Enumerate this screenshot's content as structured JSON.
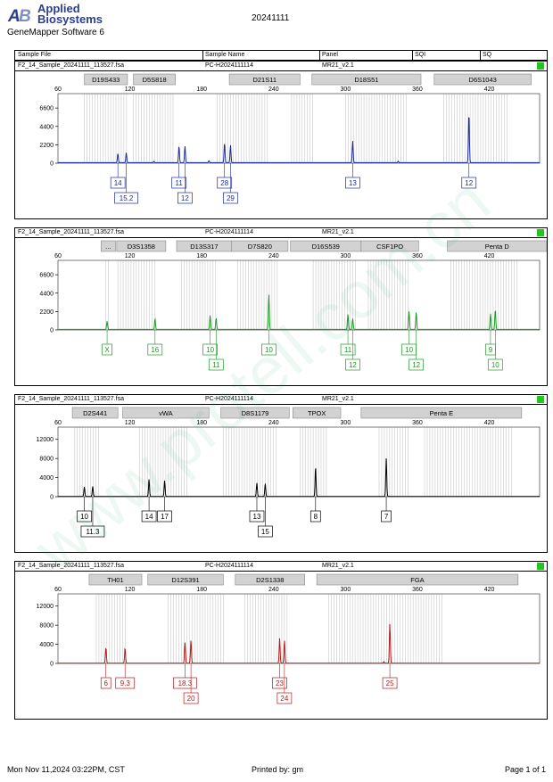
{
  "header": {
    "logo_text_line1": "Applied",
    "logo_text_line2": "Biosystems",
    "software": "GeneMapper Software 6",
    "date": "20241111",
    "columns": [
      "Sample File",
      "Sample Name",
      "Panel",
      "SQI",
      "SQ"
    ]
  },
  "footer": {
    "printed_at": "Mon Nov 11,2024 03:22PM, CST",
    "printed_by": "Printed by: gm",
    "page": "Page 1 of 1"
  },
  "watermark": "www.protell.com.cn",
  "colors": {
    "blue": "#1b2a9e",
    "green": "#1d9a27",
    "black": "#000000",
    "red": "#b11b1b",
    "bin": "#c8c8c8",
    "marker": "#d2d2d2",
    "sq_ok": "#1ec81e"
  },
  "chart_data": [
    {
      "type": "line",
      "dye": "blue",
      "sample_file": "F2_14_Sample_20241111_113527.fsa",
      "sample_name": "PC-H2024111114",
      "panel": "MR21_v2.1",
      "xlim": [
        60,
        462
      ],
      "x_ticks": [
        60,
        120,
        180,
        240,
        300,
        360,
        420
      ],
      "ylim": [
        0,
        8000
      ],
      "y_ticks": [
        0,
        2200,
        4400,
        6600
      ],
      "markers": [
        {
          "name": "D19S433",
          "range": [
            82,
            118
          ]
        },
        {
          "name": "D5S818",
          "range": [
            123,
            158
          ]
        },
        {
          "name": "D21S11",
          "range": [
            203,
            262
          ]
        },
        {
          "name": "D18S51",
          "range": [
            272,
            363
          ]
        },
        {
          "name": "D6S1043",
          "range": [
            374,
            455
          ]
        }
      ],
      "bin_ranges": [
        [
          82,
          118
        ],
        [
          123,
          158
        ],
        [
          193,
          235
        ],
        [
          255,
          274
        ],
        [
          300,
          352
        ],
        [
          382,
          436
        ]
      ],
      "peaks": [
        {
          "x": 110,
          "h": 1100
        },
        {
          "x": 117,
          "h": 1200
        },
        {
          "x": 161,
          "h": 2000
        },
        {
          "x": 166,
          "h": 2000
        },
        {
          "x": 199,
          "h": 2400
        },
        {
          "x": 204,
          "h": 2100
        },
        {
          "x": 306,
          "h": 2600
        },
        {
          "x": 403,
          "h": 6000
        }
      ],
      "noise": [
        {
          "x": 140,
          "h": 150
        },
        {
          "x": 186,
          "h": 250
        },
        {
          "x": 344,
          "h": 180
        }
      ],
      "alleles": [
        {
          "label": "14",
          "x": 110,
          "row": 1
        },
        {
          "label": "15.2",
          "x": 117,
          "row": 2
        },
        {
          "label": "11",
          "x": 161,
          "row": 1
        },
        {
          "label": "12",
          "x": 166,
          "row": 2
        },
        {
          "label": "28",
          "x": 199,
          "row": 1
        },
        {
          "label": "29",
          "x": 204,
          "row": 2
        },
        {
          "label": "13",
          "x": 306,
          "row": 1
        },
        {
          "label": "12",
          "x": 403,
          "row": 1
        }
      ]
    },
    {
      "type": "line",
      "dye": "green",
      "sample_file": "F2_14_Sample_20241111_113527.fsa",
      "sample_name": "PC-H2024111114",
      "panel": "MR21_v2.1",
      "xlim": [
        60,
        462
      ],
      "x_ticks": [
        60,
        120,
        180,
        240,
        300,
        360,
        420
      ],
      "ylim": [
        0,
        8000
      ],
      "y_ticks": [
        0,
        2200,
        4400,
        6600
      ],
      "markers": [
        {
          "name": "...",
          "range": [
            96,
            108
          ]
        },
        {
          "name": "D3S1358",
          "range": [
            109,
            150
          ]
        },
        {
          "name": "D13S317",
          "range": [
            159,
            205
          ]
        },
        {
          "name": "D7S820",
          "range": [
            205,
            252
          ]
        },
        {
          "name": "D16S539",
          "range": [
            254,
            313
          ]
        },
        {
          "name": "CSF1PO",
          "range": [
            313,
            361
          ]
        },
        {
          "name": "Penta D",
          "range": [
            385,
            468
          ]
        }
      ],
      "bin_ranges": [
        [
          100,
          103
        ],
        [
          110,
          142
        ],
        [
          163,
          192
        ],
        [
          210,
          244
        ],
        [
          273,
          310
        ],
        [
          319,
          352
        ],
        [
          388,
          443
        ]
      ],
      "peaks": [
        {
          "x": 101,
          "h": 1000
        },
        {
          "x": 141,
          "h": 1300
        },
        {
          "x": 187,
          "h": 1700
        },
        {
          "x": 192,
          "h": 1400
        },
        {
          "x": 236,
          "h": 4200
        },
        {
          "x": 302,
          "h": 1800
        },
        {
          "x": 306,
          "h": 1300
        },
        {
          "x": 353,
          "h": 2200
        },
        {
          "x": 359,
          "h": 2100
        },
        {
          "x": 421,
          "h": 1900
        },
        {
          "x": 425,
          "h": 2400
        }
      ],
      "noise": [],
      "alleles": [
        {
          "label": "X",
          "x": 101,
          "row": 1
        },
        {
          "label": "16",
          "x": 141,
          "row": 1
        },
        {
          "label": "10",
          "x": 187,
          "row": 1
        },
        {
          "label": "11",
          "x": 192,
          "row": 2
        },
        {
          "label": "10",
          "x": 236,
          "row": 1
        },
        {
          "label": "11",
          "x": 302,
          "row": 1
        },
        {
          "label": "12",
          "x": 306,
          "row": 2
        },
        {
          "label": "10",
          "x": 353,
          "row": 1
        },
        {
          "label": "12",
          "x": 359,
          "row": 2
        },
        {
          "label": "9",
          "x": 421,
          "row": 1
        },
        {
          "label": "10",
          "x": 425,
          "row": 2
        }
      ]
    },
    {
      "type": "line",
      "dye": "black",
      "sample_file": "F2_14_Sample_20241111_113527.fsa",
      "sample_name": "PC-H2024111114",
      "panel": "MR21_v2.1",
      "xlim": [
        60,
        462
      ],
      "x_ticks": [
        60,
        120,
        180,
        240,
        300,
        360,
        420
      ],
      "ylim": [
        0,
        14000
      ],
      "y_ticks": [
        0,
        4000,
        8000,
        12000
      ],
      "markers": [
        {
          "name": "D2S441",
          "range": [
            72,
            110
          ]
        },
        {
          "name": "vWA",
          "range": [
            114,
            186
          ]
        },
        {
          "name": "D8S1179",
          "range": [
            196,
            253
          ]
        },
        {
          "name": "TPOX",
          "range": [
            256,
            296
          ]
        },
        {
          "name": "Penta E",
          "range": [
            313,
            447
          ]
        }
      ],
      "bin_ranges": [
        [
          74,
          96
        ],
        [
          128,
          168
        ],
        [
          198,
          244
        ],
        [
          262,
          284
        ],
        [
          328,
          354
        ],
        [
          366,
          440
        ]
      ],
      "peaks": [
        {
          "x": 82,
          "h": 2000
        },
        {
          "x": 89,
          "h": 2100
        },
        {
          "x": 136,
          "h": 3600
        },
        {
          "x": 149,
          "h": 3300
        },
        {
          "x": 226,
          "h": 2800
        },
        {
          "x": 233,
          "h": 2700
        },
        {
          "x": 275,
          "h": 6300
        },
        {
          "x": 334,
          "h": 8000
        }
      ],
      "noise": [],
      "alleles": [
        {
          "label": "10",
          "x": 82,
          "row": 1
        },
        {
          "label": "11.3",
          "x": 89,
          "row": 2
        },
        {
          "label": "14",
          "x": 136,
          "row": 1
        },
        {
          "label": "17",
          "x": 149,
          "row": 1
        },
        {
          "label": "13",
          "x": 226,
          "row": 1
        },
        {
          "label": "15",
          "x": 233,
          "row": 2
        },
        {
          "label": "8",
          "x": 275,
          "row": 1
        },
        {
          "label": "7",
          "x": 334,
          "row": 1
        }
      ]
    },
    {
      "type": "line",
      "dye": "red",
      "sample_file": "F2_14_Sample_20241111_113527.fsa",
      "sample_name": "PC-H2024111114",
      "panel": "MR21_v2.1",
      "xlim": [
        60,
        462
      ],
      "x_ticks": [
        60,
        120,
        180,
        240,
        300,
        360,
        420
      ],
      "ylim": [
        0,
        14000
      ],
      "y_ticks": [
        0,
        4000,
        8000,
        12000
      ],
      "markers": [
        {
          "name": "TH01",
          "range": [
            86,
            130
          ]
        },
        {
          "name": "D12S391",
          "range": [
            135,
            198
          ]
        },
        {
          "name": "D2S1338",
          "range": [
            208,
            266
          ]
        },
        {
          "name": "FGA",
          "range": [
            276,
            444
          ]
        }
      ],
      "bin_ranges": [
        [
          92,
          118
        ],
        [
          152,
          200
        ],
        [
          216,
          252
        ],
        [
          286,
          382
        ]
      ],
      "peaks": [
        {
          "x": 100,
          "h": 3300
        },
        {
          "x": 116,
          "h": 3200
        },
        {
          "x": 166,
          "h": 4400
        },
        {
          "x": 171,
          "h": 4800
        },
        {
          "x": 245,
          "h": 5200
        },
        {
          "x": 249,
          "h": 4800
        },
        {
          "x": 337,
          "h": 8300
        }
      ],
      "noise": [
        {
          "x": 332,
          "h": 300
        }
      ],
      "alleles": [
        {
          "label": "6",
          "x": 100,
          "row": 1
        },
        {
          "label": "9.3",
          "x": 116,
          "row": 1
        },
        {
          "label": "18.3",
          "x": 166,
          "row": 1
        },
        {
          "label": "20",
          "x": 171,
          "row": 2
        },
        {
          "label": "23",
          "x": 245,
          "row": 1
        },
        {
          "label": "24",
          "x": 249,
          "row": 2
        },
        {
          "label": "25",
          "x": 337,
          "row": 1
        }
      ]
    }
  ]
}
